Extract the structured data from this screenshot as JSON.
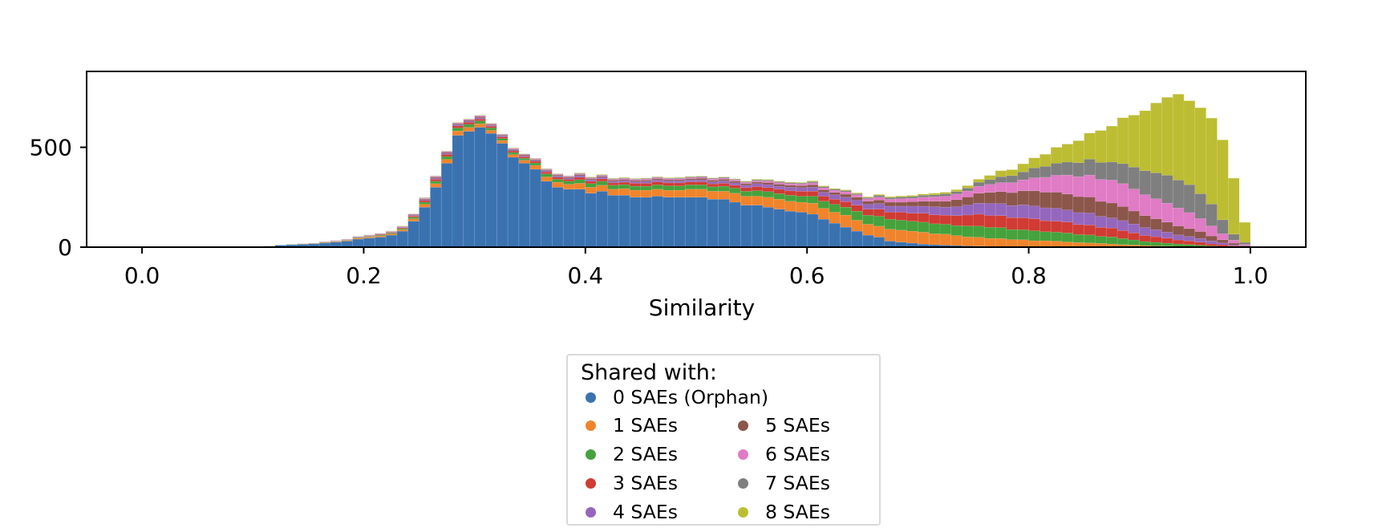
{
  "chart_data": {
    "type": "bar",
    "stacked": true,
    "histogram": true,
    "xlabel": "Similarity",
    "ylabel": "",
    "xlim": [
      -0.05,
      1.05
    ],
    "ylim": [
      0,
      880
    ],
    "xticks": [
      "0.0",
      "0.2",
      "0.4",
      "0.6",
      "0.8",
      "1.0"
    ],
    "xtick_values": [
      0.0,
      0.2,
      0.4,
      0.6,
      0.8,
      1.0
    ],
    "yticks": [
      "0",
      "500"
    ],
    "ytick_values": [
      0,
      500
    ],
    "grid": false,
    "legend_title": "Shared with:",
    "legend_placement": "below",
    "bin_width": 0.01,
    "x": [
      0.115,
      0.125,
      0.135,
      0.145,
      0.155,
      0.165,
      0.175,
      0.185,
      0.195,
      0.205,
      0.215,
      0.225,
      0.235,
      0.245,
      0.255,
      0.265,
      0.275,
      0.285,
      0.295,
      0.305,
      0.315,
      0.325,
      0.335,
      0.345,
      0.355,
      0.365,
      0.375,
      0.385,
      0.395,
      0.405,
      0.415,
      0.425,
      0.435,
      0.445,
      0.455,
      0.465,
      0.475,
      0.485,
      0.495,
      0.505,
      0.515,
      0.525,
      0.535,
      0.545,
      0.555,
      0.565,
      0.575,
      0.585,
      0.595,
      0.605,
      0.615,
      0.625,
      0.635,
      0.645,
      0.655,
      0.665,
      0.675,
      0.685,
      0.695,
      0.705,
      0.715,
      0.725,
      0.735,
      0.745,
      0.755,
      0.765,
      0.775,
      0.785,
      0.795,
      0.805,
      0.815,
      0.825,
      0.835,
      0.845,
      0.855,
      0.865,
      0.875,
      0.885,
      0.895,
      0.905,
      0.915,
      0.925,
      0.935,
      0.945,
      0.955,
      0.965,
      0.975,
      0.985,
      0.995
    ],
    "series": [
      {
        "name": "0 SAEs (Orphan)",
        "color": "#3a72b0",
        "values": [
          5,
          10,
          12,
          14,
          16,
          20,
          25,
          30,
          40,
          45,
          50,
          60,
          80,
          130,
          200,
          300,
          420,
          560,
          580,
          600,
          570,
          520,
          450,
          420,
          390,
          330,
          300,
          290,
          290,
          270,
          280,
          260,
          260,
          250,
          250,
          255,
          250,
          250,
          250,
          250,
          240,
          240,
          225,
          210,
          210,
          200,
          190,
          180,
          175,
          165,
          140,
          120,
          100,
          80,
          60,
          50,
          30,
          25,
          20,
          15,
          12,
          10,
          8,
          6,
          5,
          4,
          3,
          3,
          2,
          2,
          2,
          2,
          1,
          1,
          1,
          1,
          1,
          1,
          1,
          0,
          0,
          0,
          0,
          0,
          0,
          0,
          0,
          0,
          0
        ]
      },
      {
        "name": "1 SAEs",
        "color": "#f0842c",
        "values": [
          0,
          0,
          1,
          1,
          1,
          2,
          2,
          3,
          4,
          5,
          6,
          6,
          8,
          12,
          15,
          18,
          20,
          22,
          20,
          18,
          15,
          14,
          14,
          15,
          20,
          22,
          25,
          25,
          30,
          30,
          30,
          30,
          33,
          35,
          35,
          35,
          35,
          35,
          40,
          40,
          40,
          40,
          45,
          45,
          45,
          50,
          50,
          50,
          50,
          55,
          55,
          55,
          60,
          55,
          55,
          55,
          60,
          60,
          60,
          60,
          55,
          55,
          50,
          45,
          45,
          40,
          40,
          35,
          35,
          30,
          30,
          28,
          25,
          22,
          20,
          18,
          15,
          12,
          10,
          8,
          6,
          5,
          4,
          3,
          2,
          1,
          1,
          0,
          0
        ]
      },
      {
        "name": "2 SAEs",
        "color": "#45a23c",
        "values": [
          0,
          0,
          1,
          1,
          1,
          2,
          2,
          2,
          3,
          3,
          4,
          4,
          5,
          8,
          10,
          12,
          14,
          15,
          15,
          14,
          12,
          10,
          10,
          10,
          12,
          15,
          15,
          15,
          18,
          18,
          20,
          20,
          20,
          20,
          20,
          22,
          22,
          22,
          22,
          22,
          22,
          25,
          25,
          25,
          28,
          28,
          28,
          30,
          30,
          35,
          35,
          40,
          40,
          45,
          45,
          50,
          50,
          50,
          50,
          50,
          50,
          50,
          50,
          55,
          55,
          55,
          55,
          50,
          50,
          50,
          45,
          45,
          45,
          40,
          40,
          35,
          35,
          30,
          25,
          20,
          18,
          15,
          12,
          10,
          8,
          5,
          3,
          2,
          1
        ]
      },
      {
        "name": "3 SAEs",
        "color": "#d03b33",
        "values": [
          0,
          0,
          0,
          1,
          1,
          1,
          1,
          2,
          2,
          2,
          3,
          3,
          4,
          6,
          8,
          10,
          10,
          10,
          10,
          10,
          8,
          8,
          8,
          8,
          8,
          10,
          10,
          10,
          12,
          12,
          12,
          12,
          12,
          15,
          15,
          15,
          15,
          15,
          15,
          15,
          15,
          15,
          15,
          18,
          20,
          20,
          22,
          22,
          25,
          25,
          25,
          25,
          28,
          30,
          30,
          35,
          35,
          40,
          40,
          45,
          45,
          45,
          50,
          55,
          60,
          60,
          60,
          60,
          60,
          60,
          55,
          55,
          55,
          50,
          50,
          45,
          45,
          40,
          35,
          30,
          28,
          25,
          20,
          18,
          15,
          10,
          8,
          5,
          2
        ]
      },
      {
        "name": "4 SAEs",
        "color": "#9467bd",
        "values": [
          0,
          0,
          0,
          0,
          1,
          1,
          1,
          1,
          2,
          2,
          2,
          2,
          3,
          4,
          5,
          6,
          6,
          6,
          6,
          6,
          5,
          5,
          5,
          5,
          5,
          6,
          6,
          6,
          8,
          8,
          8,
          8,
          8,
          8,
          10,
          10,
          10,
          10,
          10,
          10,
          10,
          12,
          12,
          12,
          15,
          15,
          15,
          18,
          18,
          20,
          20,
          22,
          22,
          25,
          25,
          28,
          30,
          30,
          35,
          35,
          40,
          40,
          45,
          50,
          55,
          60,
          60,
          60,
          65,
          65,
          65,
          65,
          60,
          60,
          60,
          55,
          50,
          50,
          45,
          40,
          35,
          30,
          25,
          22,
          18,
          15,
          10,
          5,
          3
        ]
      },
      {
        "name": "5 SAEs",
        "color": "#8c564b",
        "values": [
          0,
          0,
          0,
          0,
          0,
          1,
          1,
          1,
          1,
          2,
          2,
          2,
          2,
          3,
          4,
          5,
          5,
          5,
          5,
          5,
          4,
          4,
          4,
          4,
          4,
          4,
          5,
          5,
          5,
          5,
          5,
          6,
          6,
          6,
          6,
          6,
          6,
          6,
          6,
          8,
          8,
          8,
          8,
          8,
          8,
          10,
          10,
          10,
          10,
          12,
          12,
          12,
          15,
          15,
          15,
          18,
          20,
          20,
          22,
          25,
          28,
          30,
          35,
          40,
          50,
          55,
          60,
          65,
          70,
          75,
          78,
          80,
          80,
          80,
          80,
          75,
          75,
          70,
          65,
          60,
          55,
          50,
          45,
          40,
          35,
          25,
          15,
          8,
          3
        ]
      },
      {
        "name": "6 SAEs",
        "color": "#e07bc5",
        "values": [
          0,
          0,
          0,
          0,
          0,
          0,
          1,
          1,
          1,
          1,
          1,
          2,
          2,
          2,
          3,
          3,
          4,
          4,
          4,
          4,
          3,
          3,
          3,
          3,
          3,
          3,
          4,
          4,
          4,
          4,
          4,
          4,
          5,
          5,
          5,
          5,
          5,
          5,
          5,
          5,
          6,
          6,
          6,
          6,
          6,
          8,
          8,
          8,
          8,
          10,
          10,
          10,
          12,
          12,
          12,
          15,
          15,
          18,
          18,
          20,
          22,
          25,
          28,
          30,
          35,
          40,
          45,
          50,
          55,
          65,
          75,
          85,
          95,
          100,
          110,
          110,
          115,
          115,
          110,
          105,
          100,
          95,
          90,
          80,
          65,
          50,
          30,
          15,
          5
        ]
      },
      {
        "name": "7 SAEs",
        "color": "#7f7f7f",
        "values": [
          0,
          0,
          0,
          0,
          0,
          0,
          0,
          0,
          1,
          1,
          1,
          1,
          1,
          1,
          2,
          2,
          2,
          2,
          2,
          2,
          2,
          2,
          2,
          2,
          2,
          2,
          2,
          2,
          3,
          3,
          3,
          3,
          3,
          3,
          3,
          3,
          3,
          4,
          4,
          4,
          4,
          4,
          4,
          4,
          5,
          5,
          5,
          5,
          5,
          6,
          6,
          6,
          6,
          6,
          6,
          8,
          8,
          8,
          8,
          10,
          10,
          12,
          12,
          15,
          20,
          25,
          30,
          35,
          40,
          50,
          55,
          60,
          65,
          70,
          80,
          85,
          90,
          100,
          110,
          120,
          130,
          140,
          140,
          140,
          125,
          110,
          70,
          30,
          10
        ]
      },
      {
        "name": "8 SAEs",
        "color": "#bcbd32",
        "values": [
          0,
          0,
          0,
          0,
          0,
          0,
          0,
          0,
          0,
          0,
          0,
          1,
          1,
          1,
          1,
          1,
          1,
          1,
          1,
          1,
          1,
          1,
          1,
          1,
          1,
          1,
          1,
          1,
          2,
          2,
          2,
          2,
          2,
          2,
          2,
          2,
          2,
          2,
          2,
          2,
          2,
          2,
          2,
          3,
          3,
          3,
          3,
          3,
          3,
          4,
          4,
          4,
          4,
          4,
          4,
          5,
          5,
          5,
          6,
          6,
          8,
          8,
          10,
          12,
          15,
          20,
          30,
          30,
          40,
          50,
          60,
          80,
          90,
          110,
          130,
          160,
          180,
          230,
          260,
          300,
          350,
          390,
          430,
          420,
          430,
          430,
          400,
          280,
          100
        ]
      }
    ]
  }
}
